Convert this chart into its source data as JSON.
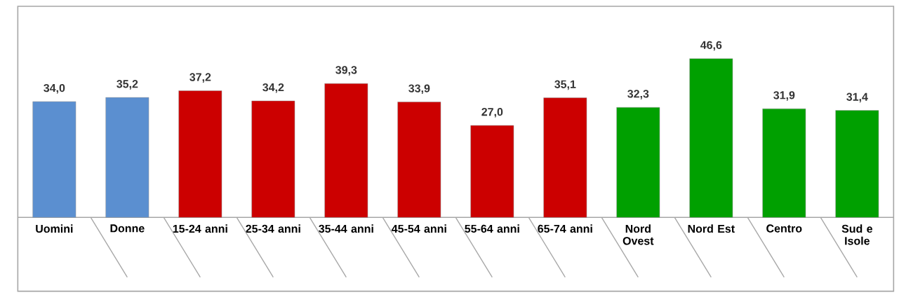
{
  "chart_data": {
    "type": "bar",
    "categories": [
      "Uomini",
      "Donne",
      "15-24 anni",
      "25-34 anni",
      "35-44 anni",
      "45-54 anni",
      "55-64 anni",
      "65-74 anni",
      "Nord Ovest",
      "Nord Est",
      "Centro",
      "Sud e Isole"
    ],
    "values": [
      34.0,
      35.2,
      37.2,
      34.2,
      39.3,
      33.9,
      27.0,
      35.1,
      32.3,
      46.6,
      31.9,
      31.4
    ],
    "value_labels": [
      "34,0",
      "35,2",
      "37,2",
      "34,2",
      "39,3",
      "33,9",
      "27,0",
      "35,1",
      "32,3",
      "46,6",
      "31,9",
      "31,4"
    ],
    "colors": [
      "#5b8fd0",
      "#5b8fd0",
      "#cc0000",
      "#cc0000",
      "#cc0000",
      "#cc0000",
      "#cc0000",
      "#cc0000",
      "#00a000",
      "#00a000",
      "#00a000",
      "#00a000"
    ]
  }
}
